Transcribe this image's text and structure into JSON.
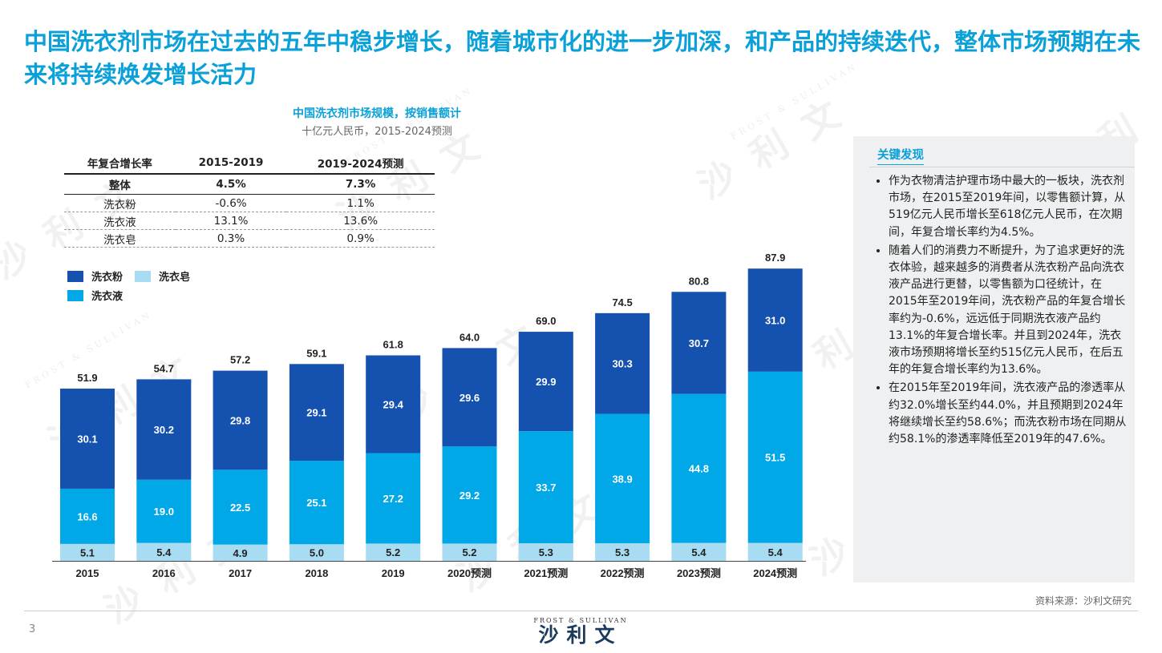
{
  "title": "中国洗衣剂市场在过去的五年中稳步增长，随着城市化的进一步加深，和产品的持续迭代，整体市场预期在未来将持续焕发增长活力",
  "chart_header": {
    "title": "中国洗衣剂市场规模，按销售额计",
    "subtitle": "十亿元人民币，2015-2024预测"
  },
  "cagr_table": {
    "headers": [
      "年复合增长率",
      "2015-2019",
      "2019-2024预测"
    ],
    "rows": [
      {
        "label": "整体",
        "v1": "4.5%",
        "v2": "7.3%"
      },
      {
        "label": "洗衣粉",
        "v1": "-0.6%",
        "v2": "1.1%"
      },
      {
        "label": "洗衣液",
        "v1": "13.1%",
        "v2": "13.6%"
      },
      {
        "label": "洗衣皂",
        "v1": "0.3%",
        "v2": "0.9%"
      }
    ]
  },
  "legend": {
    "powder": "洗衣粉",
    "soap": "洗衣皂",
    "liquid": "洗衣液"
  },
  "colors": {
    "powder": "#1552b0",
    "liquid": "#00a8e8",
    "soap": "#a8dcf2",
    "accent": "#0aa0d8"
  },
  "chart_data": {
    "type": "bar",
    "stacked": true,
    "categories": [
      "2015",
      "2016",
      "2017",
      "2018",
      "2019",
      "2020预测",
      "2021预测",
      "2022预测",
      "2023预测",
      "2024预测"
    ],
    "series": [
      {
        "name": "洗衣皂",
        "values": [
          5.1,
          5.4,
          4.9,
          5.0,
          5.2,
          5.2,
          5.3,
          5.3,
          5.4,
          5.4
        ]
      },
      {
        "name": "洗衣液",
        "values": [
          16.6,
          19.0,
          22.5,
          25.1,
          27.2,
          29.2,
          33.7,
          38.9,
          44.8,
          51.5
        ]
      },
      {
        "name": "洗衣粉",
        "values": [
          30.1,
          30.2,
          29.8,
          29.1,
          29.4,
          29.6,
          29.9,
          30.3,
          30.7,
          31.0
        ]
      }
    ],
    "totals": [
      "51.9",
      "54.7",
      "57.2",
      "59.1",
      "61.8",
      "64.0",
      "69.0",
      "74.5",
      "80.8",
      "87.9"
    ],
    "ylim": [
      0,
      90
    ]
  },
  "findings": {
    "title": "关键发现",
    "items": [
      "作为衣物清洁护理市场中最大的一板块，洗衣剂市场，在2015至2019年间，以零售额计算，从519亿元人民币增长至618亿元人民币，在次期间，年复合增长率约为4.5%。",
      "随着人们的消费力不断提升，为了追求更好的洗衣体验，越来越多的消费者从洗衣粉产品向洗衣液产品进行更替，以零售额为口径统计，在2015年至2019年间，洗衣粉产品的年复合增长率约为-0.6%，远远低于同期洗衣液产品约13.1%的年复合增长率。并且到2024年，洗衣液市场预期将增长至约515亿元人民币，在后五年的年复合增长率约为13.6%。",
      "在2015年至2019年间，洗衣液产品的渗透率从约32.0%增长至约44.0%，并且预期到2024年将继续增长至约58.6%；而洗衣粉市场在同期从约58.1%的渗透率降低至2019年的47.6%。"
    ]
  },
  "source": "资料来源：沙利文研究",
  "page_number": "3",
  "logo": {
    "top": "FROST & SULLIVAN",
    "main": "沙利文"
  }
}
